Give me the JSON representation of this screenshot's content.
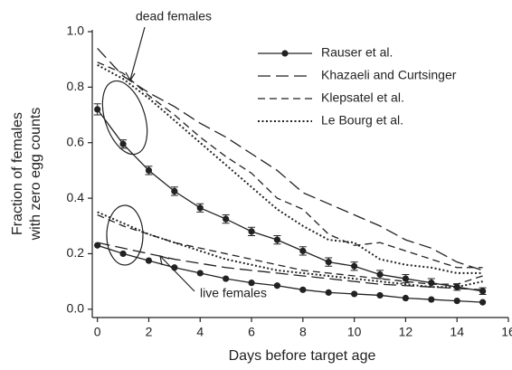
{
  "chart_data": {
    "type": "line",
    "xlabel": "Days before target age",
    "ylabel": [
      "Fraction of females",
      "with zero egg counts"
    ],
    "annotations": [
      "dead females",
      "live females"
    ],
    "x": [
      0,
      1,
      2,
      3,
      4,
      5,
      6,
      7,
      8,
      9,
      10,
      11,
      12,
      13,
      14,
      15
    ],
    "xlim": [
      -0.2,
      16
    ],
    "xticks": [
      0,
      2,
      4,
      6,
      8,
      10,
      12,
      14,
      16
    ],
    "ylim": [
      -0.03,
      1
    ],
    "yticks": [
      {
        "value": 0,
        "label": "0.0"
      },
      0.2,
      0.4,
      0.6,
      0.8,
      {
        "value": 1,
        "label": "1.0"
      }
    ],
    "legend": "upper right",
    "series": [
      {
        "name": "Rauser et al.",
        "color": "#222222",
        "linestyle": "solid",
        "markers": true,
        "values": [
          0.72,
          0.595,
          0.5,
          0.425,
          0.365,
          0.325,
          0.28,
          0.25,
          0.21,
          0.17,
          0.155,
          0.125,
          0.11,
          0.095,
          0.08,
          0.065
        ],
        "errors": [
          0.02,
          0.015,
          0.015,
          0.015,
          0.015,
          0.015,
          0.015,
          0.015,
          0.015,
          0.015,
          0.015,
          0.015,
          0.015,
          0.015,
          0.012,
          0.012
        ],
        "live_values": [
          0.23,
          0.2,
          0.175,
          0.15,
          0.13,
          0.11,
          0.095,
          0.085,
          0.07,
          0.06,
          0.055,
          0.05,
          0.04,
          0.035,
          0.03,
          0.025
        ]
      },
      {
        "name": "Khazaeli and Curtsinger",
        "color": "#222222",
        "linestyle": "long-dash",
        "markers": false,
        "values": [
          0.94,
          0.84,
          0.78,
          0.73,
          0.67,
          0.62,
          0.56,
          0.5,
          0.42,
          0.38,
          0.34,
          0.3,
          0.25,
          0.22,
          0.17,
          0.14
        ],
        "live_values": [
          0.24,
          0.22,
          0.2,
          0.18,
          0.165,
          0.15,
          0.14,
          0.13,
          0.12,
          0.11,
          0.1,
          0.09,
          0.085,
          0.08,
          0.075,
          0.07
        ]
      },
      {
        "name": "Klepsatel et al.",
        "color": "#222222",
        "linestyle": "dash",
        "markers": false,
        "values": [
          0.89,
          0.85,
          0.77,
          0.7,
          0.62,
          0.55,
          0.49,
          0.4,
          0.36,
          0.27,
          0.23,
          0.24,
          0.21,
          0.18,
          0.15,
          0.15
        ],
        "live_values": [
          0.34,
          0.3,
          0.27,
          0.24,
          0.22,
          0.2,
          0.18,
          0.16,
          0.14,
          0.13,
          0.12,
          0.11,
          0.1,
          0.09,
          0.09,
          0.12
        ]
      },
      {
        "name": "Le Bourg et al.",
        "color": "#222222",
        "linestyle": "dot",
        "markers": false,
        "values": [
          0.88,
          0.83,
          0.76,
          0.68,
          0.6,
          0.52,
          0.44,
          0.36,
          0.3,
          0.25,
          0.24,
          0.18,
          0.16,
          0.15,
          0.13,
          0.13
        ],
        "live_values": [
          0.35,
          0.31,
          0.27,
          0.24,
          0.21,
          0.18,
          0.16,
          0.14,
          0.13,
          0.12,
          0.11,
          0.1,
          0.09,
          0.08,
          0.08,
          0.1
        ]
      }
    ]
  }
}
